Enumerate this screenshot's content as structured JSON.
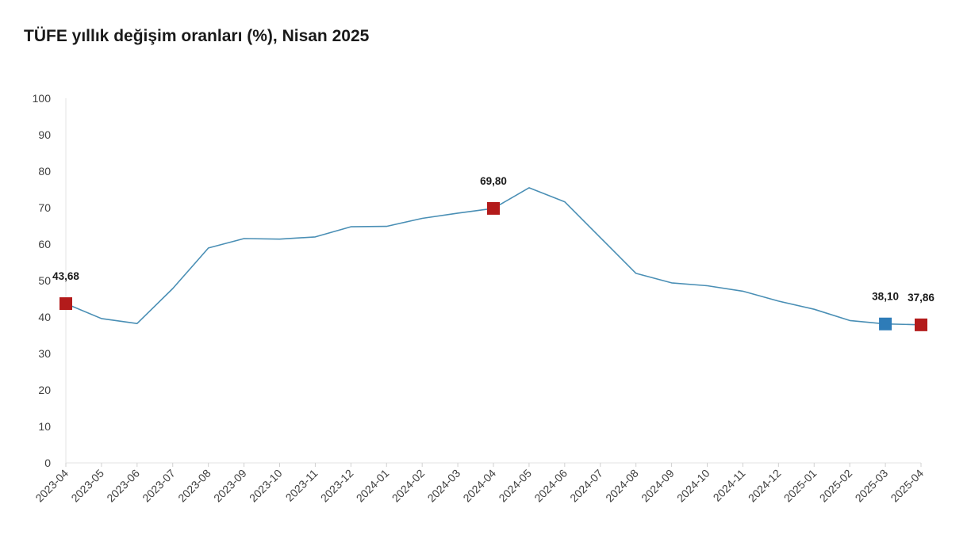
{
  "chart_data": {
    "type": "line",
    "title": "TÜFE yıllık değişim oranları (%), Nisan 2025",
    "xlabel": "",
    "ylabel": "",
    "ylim": [
      0,
      100
    ],
    "yticks": [
      0,
      10,
      20,
      30,
      40,
      50,
      60,
      70,
      80,
      90,
      100
    ],
    "categories": [
      "2023-04",
      "2023-05",
      "2023-06",
      "2023-07",
      "2023-08",
      "2023-09",
      "2023-10",
      "2023-11",
      "2023-12",
      "2024-01",
      "2024-02",
      "2024-03",
      "2024-04",
      "2024-05",
      "2024-06",
      "2024-07",
      "2024-08",
      "2024-09",
      "2024-10",
      "2024-11",
      "2024-12",
      "2025-01",
      "2025-02",
      "2025-03",
      "2025-04"
    ],
    "series": [
      {
        "values": [
          43.68,
          39.59,
          38.21,
          47.83,
          58.94,
          61.53,
          61.36,
          61.98,
          64.77,
          64.86,
          67.07,
          68.5,
          69.8,
          75.45,
          71.6,
          61.78,
          51.97,
          49.38,
          48.58,
          47.09,
          44.38,
          42.12,
          39.05,
          38.1,
          37.86
        ],
        "color": "#4a8fb5"
      }
    ],
    "highlighted_points": [
      {
        "category": "2023-04",
        "label": "43,68",
        "color": "#b31b1b"
      },
      {
        "category": "2024-04",
        "label": "69,80",
        "color": "#b31b1b"
      },
      {
        "category": "2025-03",
        "label": "38,10",
        "color": "#2e7cb8"
      },
      {
        "category": "2025-04",
        "label": "37,86",
        "color": "#b31b1b"
      }
    ],
    "grid": false,
    "legend": "none"
  }
}
